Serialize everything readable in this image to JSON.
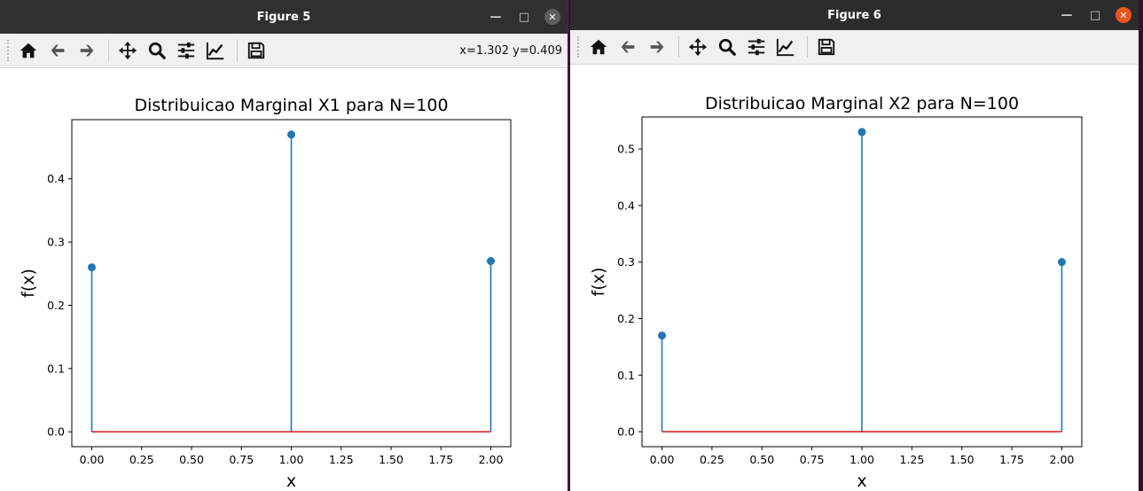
{
  "figures": [
    {
      "window_title": "Figure 5",
      "coords_text": "x=1.302 y=0.409",
      "toolbar": [
        "home-icon",
        "back-icon",
        "forward-icon",
        "pan-icon",
        "zoom-icon",
        "configure-subplots-icon",
        "edit-axis-icon",
        "save-icon"
      ]
    },
    {
      "window_title": "Figure 6",
      "coords_text": "",
      "toolbar": [
        "home-icon",
        "back-icon",
        "forward-icon",
        "pan-icon",
        "zoom-icon",
        "configure-subplots-icon",
        "edit-axis-icon",
        "save-icon"
      ]
    }
  ],
  "chart_data": [
    {
      "type": "stem",
      "title": "Distribuicao Marginal X1 para N=100",
      "xlabel": "x",
      "ylabel": "f(x)",
      "x": [
        0,
        1,
        2
      ],
      "y": [
        0.26,
        0.47,
        0.27
      ],
      "xlim": [
        -0.1,
        2.1
      ],
      "ylim": [
        -0.0235,
        0.4935
      ],
      "xticks": [
        "0.00",
        "0.25",
        "0.50",
        "0.75",
        "1.00",
        "1.25",
        "1.50",
        "1.75",
        "2.00"
      ],
      "yticks": [
        "0.0",
        "0.1",
        "0.2",
        "0.3",
        "0.4"
      ],
      "stem_color": "#1f77b4",
      "baseline_color": "#d62728",
      "grid": false
    },
    {
      "type": "stem",
      "title": "Distribuicao Marginal X2 para N=100",
      "xlabel": "x",
      "ylabel": "f(x)",
      "x": [
        0,
        1,
        2
      ],
      "y": [
        0.17,
        0.53,
        0.3
      ],
      "xlim": [
        -0.1,
        2.1
      ],
      "ylim": [
        -0.0265,
        0.5565
      ],
      "xticks": [
        "0.00",
        "0.25",
        "0.50",
        "0.75",
        "1.00",
        "1.25",
        "1.50",
        "1.75",
        "2.00"
      ],
      "yticks": [
        "0.0",
        "0.1",
        "0.2",
        "0.3",
        "0.4",
        "0.5"
      ],
      "stem_color": "#1f77b4",
      "baseline_color": "#d62728",
      "grid": false
    }
  ]
}
